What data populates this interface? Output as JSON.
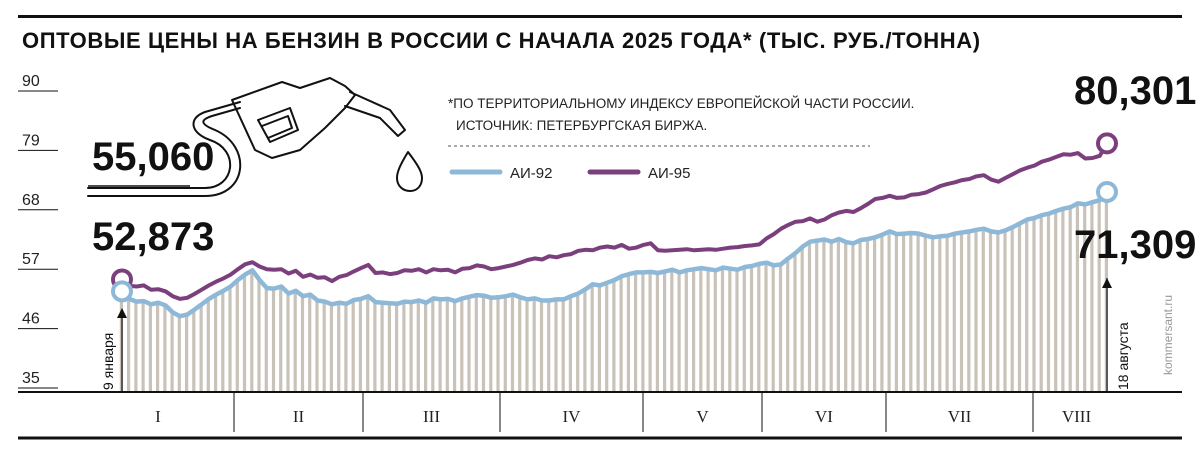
{
  "title": "ОПТОВЫЕ ЦЕНЫ НА БЕНЗИН В РОССИИ С НАЧАЛА 2025 ГОДА* (ТЫС. РУБ./ТОННА)",
  "footnote": "*ПО ТЕРРИТОРИАЛЬНОМУ ИНДЕКСУ ЕВРОПЕЙСКОЙ ЧАСТИ РОССИИ.",
  "source": "ИСТОЧНИК: ПЕТЕРБУРГСКАЯ БИРЖА.",
  "credit": "kommersant.ru",
  "icons": {
    "pump": "fuel-nozzle-icon"
  },
  "colors": {
    "ai92": "#8db8d8",
    "ai95": "#7b3f7e",
    "bars": "#c9c2b8"
  },
  "chart_data": {
    "type": "line",
    "title": "Оптовые цены на бензин в России с начала 2025 года (тыс. руб./тонна)",
    "ylabel": "тыс. руб./тонна",
    "xlabel": "",
    "ylim": [
      35,
      90
    ],
    "yticks": [
      "90",
      "79",
      "68",
      "57",
      "46",
      "35"
    ],
    "months": [
      "I",
      "II",
      "III",
      "IV",
      "V",
      "VI",
      "VII",
      "VIII"
    ],
    "start_label": "9 января",
    "end_label": "18 августа",
    "series": [
      {
        "name": "АИ-92",
        "start_value": "52,873",
        "end_value": "71,309",
        "values": [
          52.9,
          51.5,
          51.0,
          51.1,
          50.5,
          50.8,
          50.3,
          49.0,
          48.3,
          48.6,
          49.5,
          50.5,
          51.5,
          52.3,
          53.0,
          53.8,
          55.0,
          56.0,
          56.8,
          55.0,
          53.5,
          53.4,
          53.8,
          52.5,
          53.0,
          52.0,
          52.3,
          51.2,
          51.0,
          50.5,
          50.8,
          50.6,
          51.3,
          51.5,
          52.0,
          50.9,
          50.8,
          50.7,
          50.6,
          51.0,
          50.9,
          51.2,
          50.8,
          51.6,
          51.4,
          51.5,
          51.1,
          51.6,
          51.9,
          52.2,
          52.1,
          51.7,
          51.8,
          52.0,
          52.3,
          51.8,
          51.4,
          51.6,
          51.2,
          51.2,
          51.4,
          51.4,
          52.0,
          52.5,
          53.3,
          54.2,
          54.0,
          54.5,
          55.0,
          55.7,
          56.1,
          56.4,
          56.4,
          56.5,
          56.3,
          56.6,
          56.9,
          56.4,
          56.8,
          57.0,
          57.2,
          57.0,
          56.8,
          57.3,
          57.1,
          56.9,
          57.4,
          57.6,
          58.0,
          58.2,
          57.7,
          57.9,
          59.0,
          60.0,
          61.2,
          62.1,
          62.3,
          62.5,
          62.1,
          62.6,
          62.0,
          61.8,
          62.4,
          62.6,
          62.9,
          63.4,
          64.0,
          63.5,
          63.6,
          63.7,
          63.6,
          63.2,
          62.9,
          63.1,
          63.2,
          63.6,
          63.8,
          64.0,
          64.3,
          64.5,
          64.0,
          63.8,
          64.2,
          64.8,
          65.5,
          66.2,
          66.5,
          67.0,
          67.3,
          67.8,
          68.2,
          68.5,
          69.2,
          69.0,
          69.4,
          69.8,
          71.3
        ]
      },
      {
        "name": "АИ-95",
        "start_value": "55,060",
        "end_value": "80,301",
        "values": [
          55.1,
          53.9,
          53.8,
          54.0,
          53.2,
          53.3,
          52.9,
          52.0,
          51.5,
          51.7,
          52.4,
          53.2,
          54.0,
          54.7,
          55.3,
          56.0,
          57.0,
          57.9,
          58.3,
          57.5,
          57.0,
          56.9,
          57.0,
          56.2,
          56.7,
          55.6,
          56.0,
          55.4,
          55.5,
          54.8,
          55.6,
          55.9,
          56.6,
          57.2,
          57.8,
          56.3,
          56.4,
          56.1,
          56.3,
          56.8,
          56.7,
          57.0,
          56.4,
          57.0,
          56.8,
          56.9,
          56.4,
          57.1,
          57.2,
          57.7,
          57.5,
          57.0,
          57.2,
          57.5,
          57.8,
          58.2,
          58.7,
          59.0,
          58.8,
          59.4,
          59.2,
          59.6,
          59.8,
          60.4,
          60.6,
          60.5,
          61.0,
          61.2,
          61.0,
          61.5,
          60.8,
          61.0,
          61.5,
          61.8,
          60.5,
          60.4,
          60.5,
          60.6,
          60.7,
          60.5,
          60.6,
          60.7,
          60.6,
          60.8,
          61.0,
          61.1,
          61.3,
          61.4,
          61.6,
          62.7,
          63.5,
          64.5,
          65.2,
          65.8,
          65.9,
          66.4,
          65.8,
          66.2,
          67.0,
          67.5,
          67.8,
          67.6,
          68.3,
          69.1,
          70.0,
          70.2,
          70.6,
          70.2,
          70.3,
          70.8,
          70.9,
          71.2,
          71.8,
          72.4,
          72.8,
          73.1,
          73.5,
          73.7,
          74.2,
          74.4,
          73.6,
          73.2,
          73.9,
          74.6,
          75.3,
          75.8,
          76.2,
          76.9,
          77.3,
          77.8,
          78.3,
          78.2,
          78.5,
          77.5,
          77.6,
          78.0,
          80.3
        ]
      }
    ]
  }
}
